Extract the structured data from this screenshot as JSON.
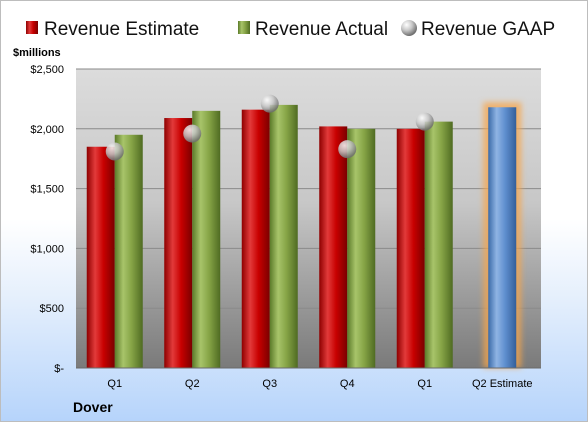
{
  "chart_data": {
    "type": "bar",
    "company": "Dover",
    "unit_label": "$millions",
    "categories": [
      "Q1",
      "Q2",
      "Q3",
      "Q4",
      "Q1",
      "Q2 Estimate"
    ],
    "ylim": [
      0,
      2500
    ],
    "yticks": [
      0,
      500,
      1000,
      1500,
      2000,
      2500
    ],
    "ytick_labels": [
      "$-",
      "$500",
      "$1,000",
      "$1,500",
      "$2,000",
      "$2,500"
    ],
    "grid": true,
    "legend_position": "top",
    "series": [
      {
        "name": "Revenue Estimate",
        "kind": "bar",
        "color": "#c00000",
        "values": [
          1850,
          2090,
          2160,
          2020,
          2000,
          null
        ]
      },
      {
        "name": "Revenue Actual",
        "kind": "bar",
        "color": "#77933c",
        "values": [
          1950,
          2150,
          2200,
          2000,
          2060,
          null
        ]
      },
      {
        "name": "Revenue GAAP",
        "kind": "marker",
        "color": "#a6a6a6",
        "values": [
          1810,
          1960,
          2210,
          1830,
          2060,
          null
        ]
      }
    ],
    "estimate_bar": {
      "category": "Q2 Estimate",
      "value": 2180,
      "color": "#4f81bd",
      "glow": "#f7a54a"
    }
  }
}
